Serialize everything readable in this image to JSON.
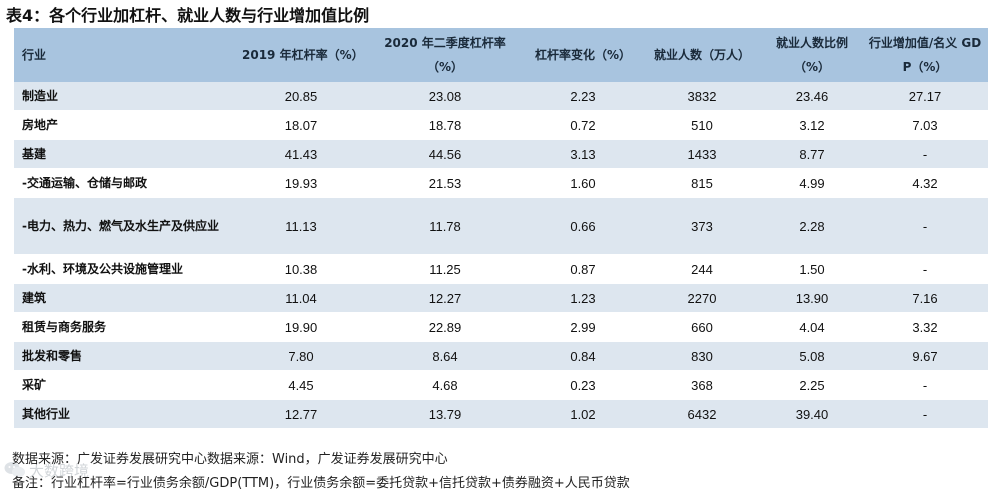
{
  "title": "表4：各个行业加杠杆、就业人数与行业增加值比例",
  "table": {
    "headers": [
      "行业",
      "2019 年杠杆率（%）",
      "2020 年二季度杠杆率（%）",
      "杠杆率变化（%）",
      "就业人数（万人）",
      "就业人数比例（%）",
      "行业增加值/名义 GDP（%）"
    ],
    "rows": [
      [
        "制造业",
        "20.85",
        "23.08",
        "2.23",
        "3832",
        "23.46",
        "27.17"
      ],
      [
        "房地产",
        "18.07",
        "18.78",
        "0.72",
        "510",
        "3.12",
        "7.03"
      ],
      [
        "基建",
        "41.43",
        "44.56",
        "3.13",
        "1433",
        "8.77",
        "-"
      ],
      [
        "-交通运输、仓储与邮政",
        "19.93",
        "21.53",
        "1.60",
        "815",
        "4.99",
        "4.32"
      ],
      [
        "-电力、热力、燃气及水生产及供应业",
        "11.13",
        "11.78",
        "0.66",
        "373",
        "2.28",
        "-"
      ],
      [
        "-水利、环境及公共设施管理业",
        "10.38",
        "11.25",
        "0.87",
        "244",
        "1.50",
        "-"
      ],
      [
        "建筑",
        "11.04",
        "12.27",
        "1.23",
        "2270",
        "13.90",
        "7.16"
      ],
      [
        "租赁与商务服务",
        "19.90",
        "22.89",
        "2.99",
        "660",
        "4.04",
        "3.32"
      ],
      [
        "批发和零售",
        "7.80",
        "8.64",
        "0.84",
        "830",
        "5.08",
        "9.67"
      ],
      [
        "采矿",
        "4.45",
        "4.68",
        "0.23",
        "368",
        "2.25",
        "-"
      ],
      [
        "其他行业",
        "12.77",
        "13.79",
        "1.02",
        "6432",
        "39.40",
        "-"
      ]
    ]
  },
  "source": "数据来源：广发证券发展研究中心数据来源：Wind，广发证券发展研究中心",
  "note": "备注：行业杠杆率=行业债务余额/GDP(TTM)，行业债务余额=委托贷款+信托贷款+债券融资+人民币贷款",
  "watermark": {
    "text": "大数跨境",
    "icon": "wechat-icon"
  },
  "colors": {
    "header_bg": "#a8c4df",
    "row_alt_bg": "#dde6ef"
  }
}
